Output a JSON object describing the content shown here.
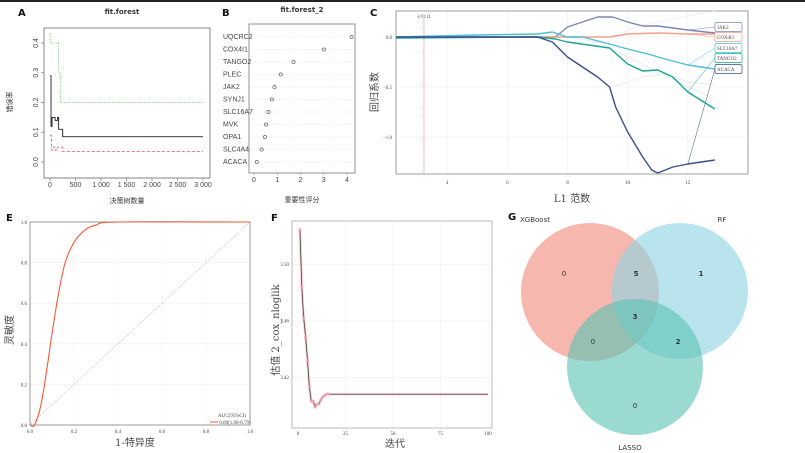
{
  "panel_labels": {
    "a": "A",
    "b": "B",
    "c": "C",
    "e": "E",
    "f": "F",
    "g": "G"
  },
  "chart_data": [
    {
      "id": "A",
      "type": "line",
      "title": "fit.forest",
      "xlabel": "决策树数量",
      "ylabel": "错误率",
      "xlim": [
        0,
        3000
      ],
      "ylim": [
        0,
        0.4
      ],
      "xticks": [
        0,
        500,
        1000,
        1500,
        2000,
        2500,
        3000
      ],
      "xtick_labels": [
        "0",
        "500",
        "1 000",
        "1 500",
        "2 000",
        "2 500",
        "3 000"
      ],
      "yticks": [
        0,
        0.1,
        0.2,
        0.3,
        0.4
      ],
      "ytick_labels": [
        "0.0",
        "0.1",
        "0.2",
        "0.3",
        "0.4"
      ],
      "series": [
        {
          "style": "solid",
          "color": "#000000",
          "points": [
            [
              1,
              0.29
            ],
            [
              20,
              0.12
            ],
            [
              40,
              0.15
            ],
            [
              100,
              0.14
            ],
            [
              150,
              0.15
            ],
            [
              170,
              0.11
            ],
            [
              250,
              0.085
            ],
            [
              3000,
              0.085
            ]
          ]
        },
        {
          "style": "dashed",
          "color": "#e0506a",
          "points": [
            [
              1,
              0.09
            ],
            [
              30,
              0.04
            ],
            [
              60,
              0.05
            ],
            [
              100,
              0.04
            ],
            [
              150,
              0.05
            ],
            [
              250,
              0.035
            ],
            [
              3000,
              0.035
            ]
          ]
        },
        {
          "style": "dotted",
          "color": "#3ec43e",
          "points": [
            [
              1,
              0.43
            ],
            [
              5,
              0.4
            ],
            [
              150,
              0.4
            ],
            [
              170,
              0.3
            ],
            [
              200,
              0.3
            ],
            [
              210,
              0.2
            ],
            [
              3000,
              0.2
            ]
          ]
        }
      ]
    },
    {
      "id": "B",
      "type": "scatter",
      "title": "fit.forest_2",
      "xlabel": "重要性评分",
      "xlim": [
        0,
        4
      ],
      "xticks": [
        0,
        1,
        2,
        3,
        4
      ],
      "xtick_labels": [
        "0",
        "1",
        "2",
        "3",
        "4"
      ],
      "categories": [
        "UQCRC2",
        "COX4I1",
        "TANGO2",
        "PLEC",
        "JAK2",
        "SYNJ1",
        "SLC16A7",
        "MVK",
        "OPA1",
        "SLC4A4",
        "ACACA"
      ],
      "values": [
        4.2,
        3.0,
        1.7,
        1.15,
        0.88,
        0.77,
        0.62,
        0.52,
        0.47,
        0.33,
        0.12
      ]
    },
    {
      "id": "C",
      "type": "line",
      "xlabel": "L1 范数",
      "ylabel": "回归系数",
      "xlim": [
        2.3,
        14.0
      ],
      "ylim": [
        -1.37,
        0.26
      ],
      "xticks": [
        4,
        6,
        8,
        10,
        12
      ],
      "xtick_labels": [
        "4",
        "6",
        "8",
        "10",
        "12"
      ],
      "yticks": [
        0,
        -0.5,
        -1.0
      ],
      "ytick_labels": [
        "0.0",
        "−0.5",
        "−1.0"
      ],
      "grid": true,
      "annotation": {
        "label": "λ=0.11",
        "x": 3.23,
        "color": "#e53935"
      },
      "series": [
        {
          "name": "JAK2",
          "color": "#7b86b8",
          "points": [
            [
              2.3,
              0
            ],
            [
              7.6,
              0
            ],
            [
              8,
              0.1
            ],
            [
              8.5,
              0.15
            ],
            [
              9,
              0.2
            ],
            [
              9.5,
              0.2
            ],
            [
              10,
              0.15
            ],
            [
              10.5,
              0.11
            ],
            [
              11,
              0.11
            ],
            [
              12,
              0.07
            ],
            [
              12.9,
              0.04
            ]
          ]
        },
        {
          "name": "COX4I1",
          "color": "#f4a08a",
          "points": [
            [
              2.3,
              0
            ],
            [
              9.4,
              0
            ],
            [
              10,
              0.03
            ],
            [
              11,
              0.04
            ],
            [
              12,
              0.03
            ],
            [
              12.9,
              0.03
            ]
          ]
        },
        {
          "name": "SLC16A7",
          "color": "#4dbfd9",
          "points": [
            [
              2.3,
              0
            ],
            [
              5,
              0.02
            ],
            [
              7,
              0.03
            ],
            [
              7.5,
              0.05
            ],
            [
              8,
              0
            ],
            [
              8.5,
              0
            ],
            [
              9.4,
              -0.07
            ],
            [
              10,
              -0.12
            ],
            [
              10.8,
              -0.18
            ],
            [
              11,
              -0.2
            ],
            [
              12,
              -0.28
            ],
            [
              12.9,
              -0.32
            ]
          ]
        },
        {
          "name": "TANGO2",
          "color": "#1aa590",
          "points": [
            [
              2.3,
              -0.01
            ],
            [
              7,
              0
            ],
            [
              7.6,
              -0.02
            ],
            [
              8,
              -0.05
            ],
            [
              9.4,
              -0.11
            ],
            [
              10,
              -0.27
            ],
            [
              10.5,
              -0.34
            ],
            [
              11,
              -0.33
            ],
            [
              11.5,
              -0.4
            ],
            [
              12,
              -0.55
            ],
            [
              12.9,
              -0.72
            ]
          ]
        },
        {
          "name": "ACACA",
          "color": "#3a4f8c",
          "points": [
            [
              2.3,
              0
            ],
            [
              7,
              0
            ],
            [
              7.5,
              -0.05
            ],
            [
              8,
              -0.2
            ],
            [
              8.5,
              -0.3
            ],
            [
              9,
              -0.4
            ],
            [
              9.4,
              -0.5
            ],
            [
              9.6,
              -0.7
            ],
            [
              10,
              -0.95
            ],
            [
              10.5,
              -1.2
            ],
            [
              10.8,
              -1.33
            ],
            [
              11,
              -1.36
            ],
            [
              11.5,
              -1.3
            ],
            [
              12,
              -1.27
            ],
            [
              12.9,
              -1.23
            ]
          ]
        },
        {
          "color": "#e6e6e6",
          "points": [
            [
              8,
              0
            ],
            [
              9,
              -0.05
            ],
            [
              10,
              -0.2
            ],
            [
              11,
              -0.35
            ],
            [
              12,
              -0.5
            ],
            [
              12.9,
              -0.62
            ]
          ]
        },
        {
          "color": "#e6e6e6",
          "points": [
            [
              9.5,
              -0.5
            ],
            [
              10.5,
              -0.4
            ],
            [
              11.2,
              -0.37
            ],
            [
              12,
              -0.45
            ],
            [
              12.9,
              -0.48
            ]
          ]
        },
        {
          "color": "#ececec",
          "points": [
            [
              9.4,
              0
            ],
            [
              10.5,
              0.12
            ],
            [
              11.5,
              0.18
            ],
            [
              12.9,
              0.26
            ]
          ]
        }
      ]
    },
    {
      "id": "E",
      "type": "line",
      "xlabel": "1-特异度",
      "ylabel": "灵敏度",
      "xlim": [
        0,
        1
      ],
      "ylim": [
        0,
        1
      ],
      "xticks": [
        0,
        0.2,
        0.4,
        0.6,
        0.8,
        1.0
      ],
      "xtick_labels": [
        "0.0",
        "0.2",
        "0.4",
        "0.6",
        "0.8",
        "1.0"
      ],
      "yticks": [
        0,
        0.2,
        0.4,
        0.6,
        0.8,
        1.0
      ],
      "ytick_labels": [
        "0.0",
        "0.2",
        "0.4",
        "0.6",
        "0.8",
        "1.0"
      ],
      "grid": true,
      "legend": "bottom-right",
      "legend_title": "AUC(95%CI)",
      "series": [
        {
          "name": "0.89(1.00-0.79)",
          "color": "#ef5a3c",
          "points": [
            [
              0,
              0
            ],
            [
              0.02,
              0
            ],
            [
              0.05,
              0.1
            ],
            [
              0.08,
              0.3
            ],
            [
              0.1,
              0.45
            ],
            [
              0.13,
              0.65
            ],
            [
              0.16,
              0.8
            ],
            [
              0.2,
              0.9
            ],
            [
              0.25,
              0.96
            ],
            [
              0.3,
              0.985
            ],
            [
              0.4,
              1
            ],
            [
              1,
              1
            ]
          ]
        }
      ],
      "reference_line": [
        [
          0,
          0
        ],
        [
          1,
          1
        ]
      ]
    },
    {
      "id": "F",
      "type": "line",
      "xlabel": "迭代",
      "ylabel": "估值 2_cox_nloglik",
      "xlim": [
        0,
        100
      ],
      "ylim": [
        3.384,
        3.531
      ],
      "xticks": [
        0,
        25,
        50,
        75,
        100
      ],
      "xtick_labels": [
        "0",
        "25",
        "50",
        "75",
        "100"
      ],
      "yticks": [
        3.42,
        3.46,
        3.5
      ],
      "ytick_labels": [
        "3.42",
        "3.46",
        "3.50"
      ],
      "grid": true,
      "series": [
        {
          "color": "#333333",
          "marker_color": "#f4a6b4",
          "points": [
            [
              1,
              3.525
            ],
            [
              2,
              3.484
            ],
            [
              3,
              3.462
            ],
            [
              4,
              3.449
            ],
            [
              5,
              3.432
            ],
            [
              6,
              3.413
            ],
            [
              7,
              3.403
            ],
            [
              8,
              3.403
            ],
            [
              9,
              3.399
            ],
            [
              10,
              3.401
            ],
            [
              11,
              3.401
            ],
            [
              12,
              3.404
            ],
            [
              13,
              3.406
            ],
            [
              14,
              3.407
            ],
            [
              15,
              3.408
            ],
            [
              16,
              3.408
            ],
            [
              100,
              3.408
            ]
          ]
        }
      ]
    },
    {
      "id": "G",
      "type": "venn",
      "sets": [
        {
          "name": "XGBoost",
          "color": "#ef8b7d"
        },
        {
          "name": "RF",
          "color": "#8fd3e2"
        },
        {
          "name": "LASSO",
          "color": "#5cc4b4"
        }
      ],
      "regions": {
        "XGBoost_only": 0,
        "RF_only": 1,
        "LASSO_only": 0,
        "XGBoost_RF": 5,
        "XGBoost_LASSO": 0,
        "RF_LASSO": 2,
        "all": 3
      }
    }
  ]
}
